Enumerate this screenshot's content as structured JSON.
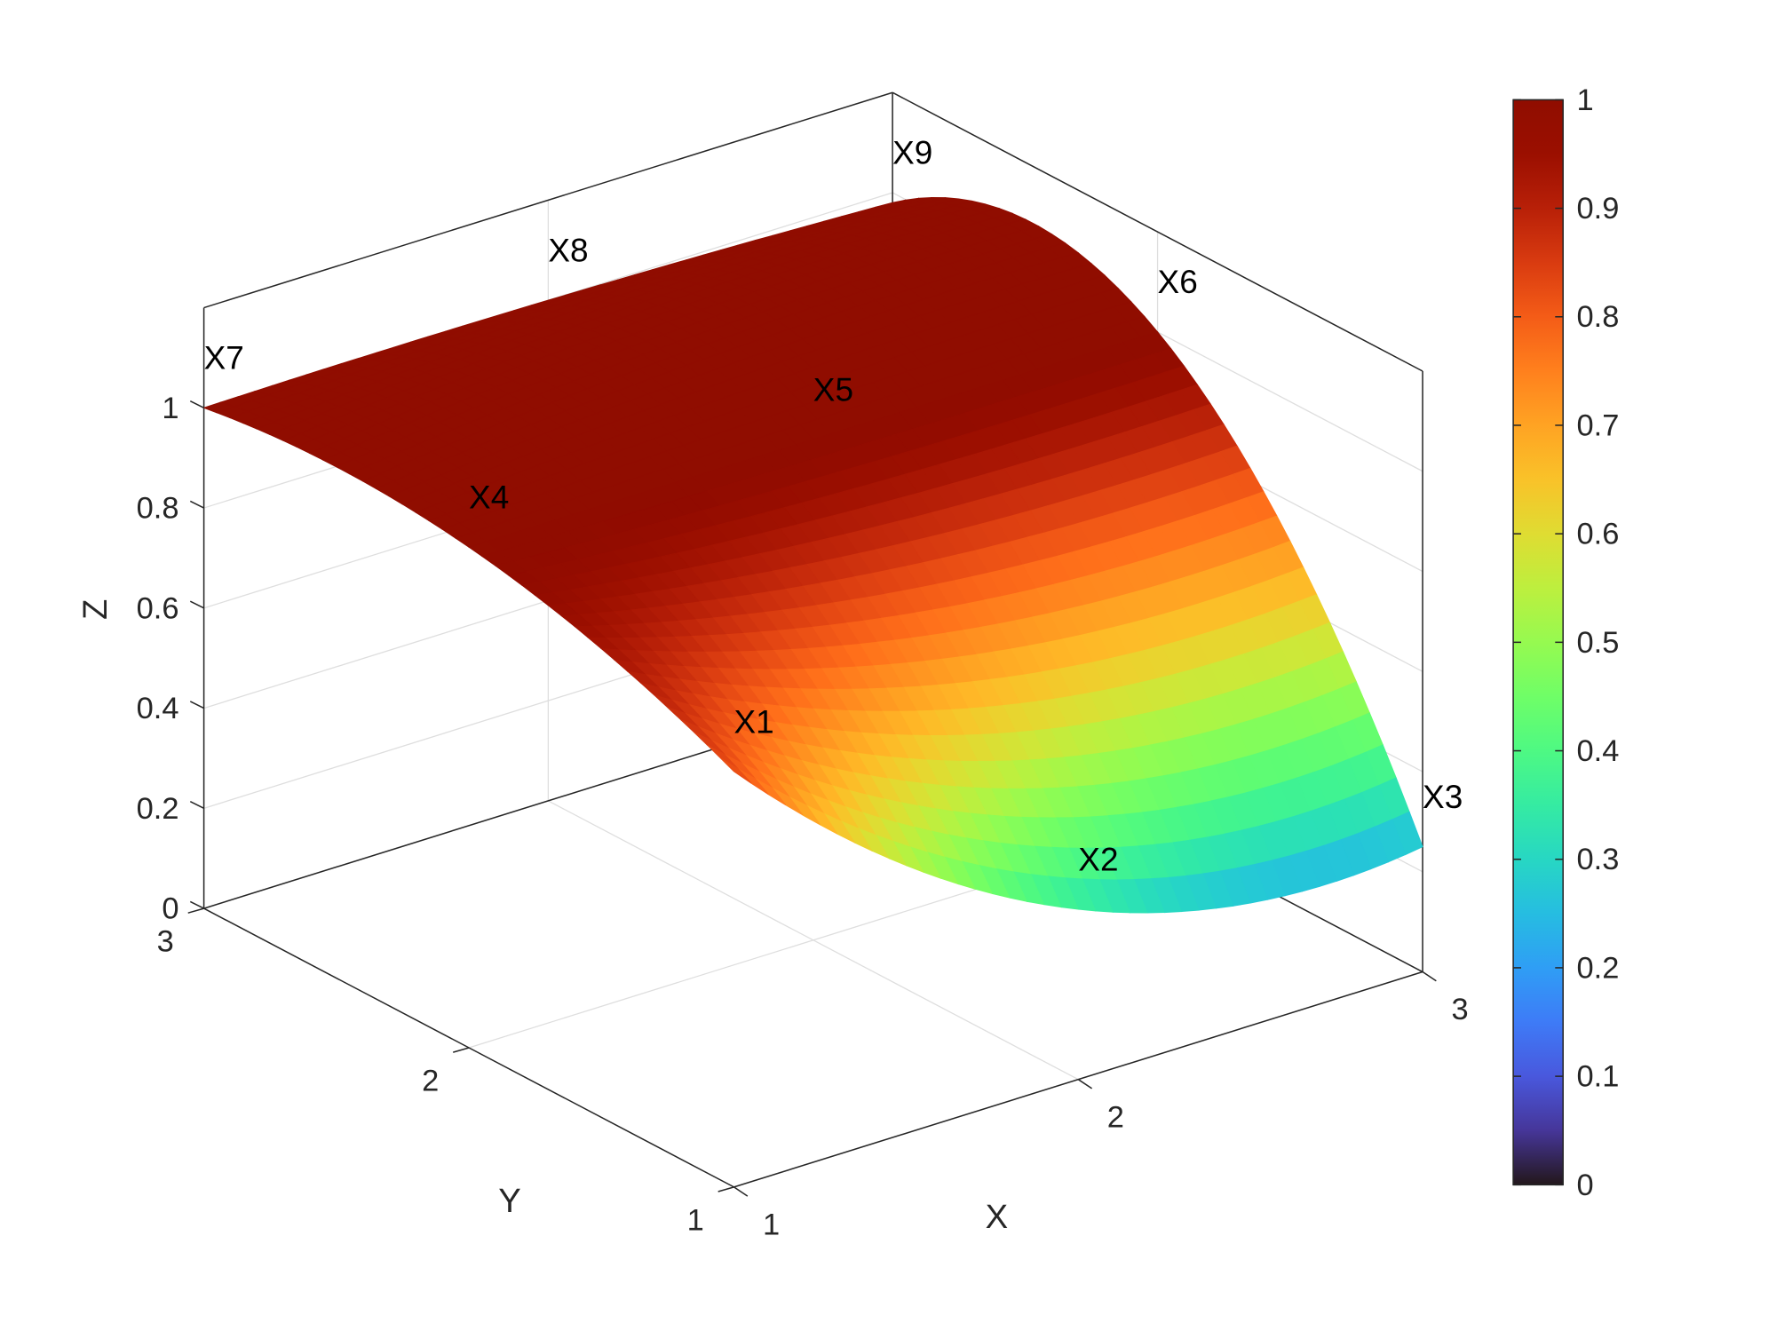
{
  "chart_data": {
    "type": "surface",
    "colormap": "turbo",
    "x": [
      1,
      2,
      3
    ],
    "y": [
      1,
      2,
      3
    ],
    "z": [
      [
        0.83,
        0.34,
        0.25
      ],
      [
        1.0,
        1.0,
        1.0
      ],
      [
        1.0,
        1.0,
        0.98
      ]
    ],
    "points": [
      {
        "label": "X1",
        "x": 1,
        "y": 1,
        "z": 0.83
      },
      {
        "label": "X2",
        "x": 2,
        "y": 1,
        "z": 0.34
      },
      {
        "label": "X3",
        "x": 3,
        "y": 1,
        "z": 0.25
      },
      {
        "label": "X4",
        "x": 1,
        "y": 2,
        "z": 1.0
      },
      {
        "label": "X5",
        "x": 2,
        "y": 2,
        "z": 1.0
      },
      {
        "label": "X6",
        "x": 3,
        "y": 2,
        "z": 1.0
      },
      {
        "label": "X7",
        "x": 1,
        "y": 3,
        "z": 1.0
      },
      {
        "label": "X8",
        "x": 2,
        "y": 3,
        "z": 1.0
      },
      {
        "label": "X9",
        "x": 3,
        "y": 3,
        "z": 0.98
      }
    ],
    "xlabel": "X",
    "ylabel": "Y",
    "zlabel": "Z",
    "xlim": [
      1,
      3
    ],
    "ylim": [
      1,
      3
    ],
    "zlim": [
      0,
      1.2
    ],
    "xticks": [
      "1",
      "2",
      "3"
    ],
    "yticks": [
      "1",
      "2",
      "3"
    ],
    "zticks": [
      "0",
      "0.2",
      "0.4",
      "0.6",
      "0.8",
      "1"
    ],
    "grid": true,
    "colorbar": {
      "location": "right",
      "limits": [
        0,
        1
      ],
      "ticks": [
        "0",
        "0.1",
        "0.2",
        "0.3",
        "0.4",
        "0.5",
        "0.6",
        "0.7",
        "0.8",
        "0.9",
        "1"
      ]
    }
  }
}
